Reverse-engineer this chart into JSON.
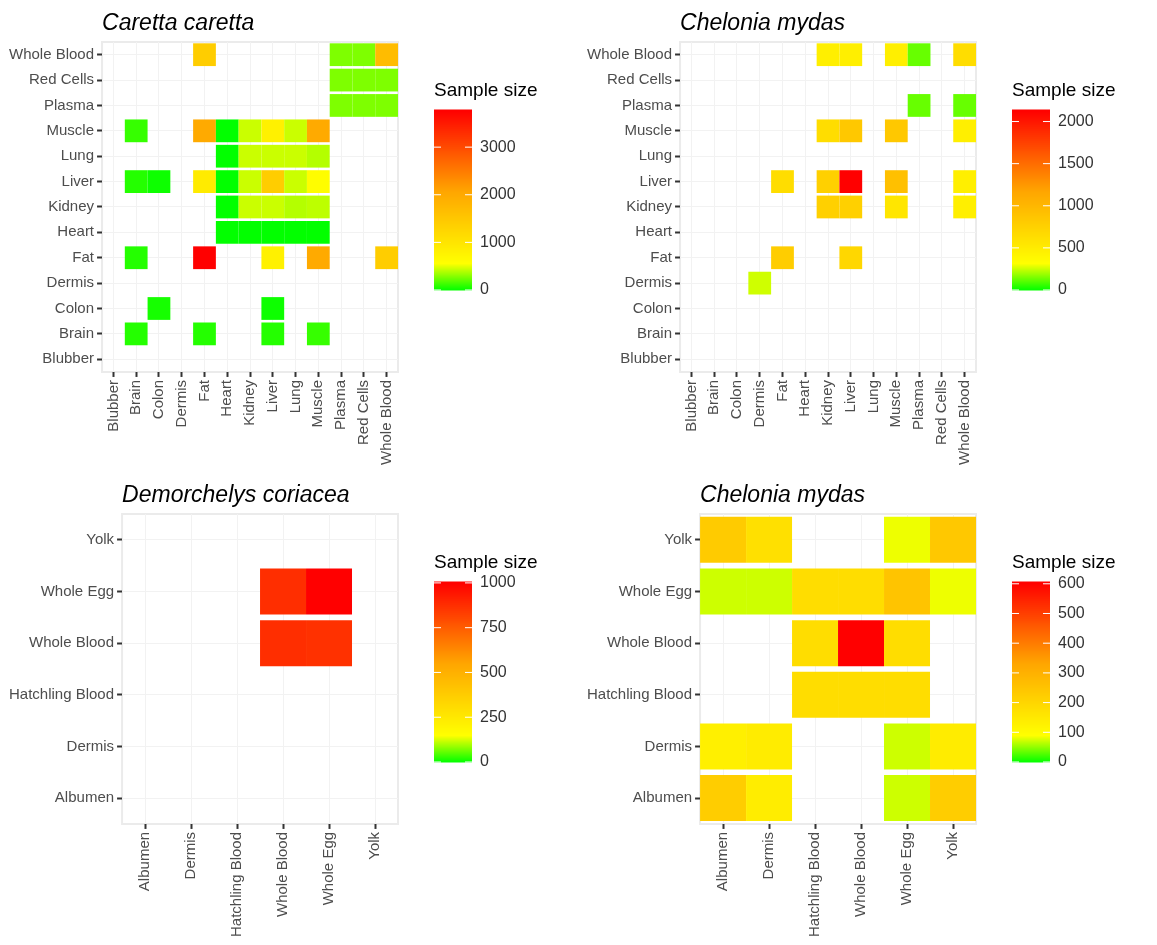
{
  "chart_data": [
    {
      "type": "heatmap",
      "title": "Caretta caretta",
      "clabel": "Sample size",
      "grid": true,
      "legend": false,
      "categories": [
        "Blubber",
        "Brain",
        "Colon",
        "Dermis",
        "Fat",
        "Heart",
        "Kidney",
        "Liver",
        "Lung",
        "Muscle",
        "Plasma",
        "Red Cells",
        "Whole Blood"
      ],
      "y_categories": [
        "Whole Blood",
        "Red Cells",
        "Plasma",
        "Muscle",
        "Lung",
        "Liver",
        "Kidney",
        "Heart",
        "Fat",
        "Dermis",
        "Colon",
        "Brain",
        "Blubber"
      ],
      "cells": [
        [
          null,
          null,
          null,
          null,
          1400,
          null,
          null,
          null,
          null,
          null,
          280,
          280,
          1700
        ],
        [
          null,
          null,
          null,
          null,
          null,
          null,
          null,
          null,
          null,
          null,
          280,
          280,
          280
        ],
        [
          null,
          null,
          null,
          null,
          null,
          null,
          null,
          null,
          null,
          null,
          280,
          280,
          280
        ],
        [
          null,
          120,
          null,
          null,
          2000,
          5,
          450,
          800,
          450,
          2000,
          null,
          null,
          null
        ],
        [
          null,
          null,
          null,
          null,
          null,
          5,
          450,
          450,
          450,
          400,
          null,
          null,
          null
        ],
        [
          null,
          80,
          30,
          null,
          900,
          5,
          450,
          1400,
          450,
          600,
          null,
          null,
          null
        ],
        [
          null,
          null,
          null,
          null,
          null,
          5,
          450,
          450,
          400,
          420,
          null,
          null,
          null
        ],
        [
          null,
          null,
          null,
          null,
          null,
          5,
          5,
          5,
          5,
          5,
          null,
          null,
          null
        ],
        [
          null,
          80,
          null,
          null,
          3780,
          null,
          null,
          800,
          null,
          2000,
          null,
          null,
          1400
        ],
        [
          null,
          null,
          null,
          null,
          null,
          null,
          null,
          null,
          null,
          null,
          null,
          null,
          null
        ],
        [
          null,
          null,
          50,
          null,
          null,
          null,
          null,
          30,
          null,
          null,
          null,
          null,
          null
        ],
        [
          null,
          80,
          null,
          null,
          80,
          null,
          null,
          80,
          null,
          120,
          null,
          null,
          null
        ],
        [
          null,
          null,
          null,
          null,
          null,
          null,
          null,
          null,
          null,
          null,
          null,
          null,
          null
        ]
      ],
      "clim": [
        0,
        3780
      ],
      "cticks": [
        0,
        1000,
        2000,
        3000
      ]
    },
    {
      "type": "heatmap",
      "title": "Chelonia mydas",
      "clabel": "Sample size",
      "grid": true,
      "legend": false,
      "categories": [
        "Blubber",
        "Brain",
        "Colon",
        "Dermis",
        "Fat",
        "Heart",
        "Kidney",
        "Liver",
        "Lung",
        "Muscle",
        "Plasma",
        "Red Cells",
        "Whole Blood"
      ],
      "y_categories": [
        "Whole Blood",
        "Red Cells",
        "Plasma",
        "Muscle",
        "Lung",
        "Liver",
        "Kidney",
        "Heart",
        "Fat",
        "Dermis",
        "Colon",
        "Brain",
        "Blubber"
      ],
      "cells": [
        [
          null,
          null,
          null,
          null,
          null,
          null,
          470,
          470,
          null,
          470,
          130,
          null,
          640
        ],
        [
          null,
          null,
          null,
          null,
          null,
          null,
          null,
          null,
          null,
          null,
          null,
          null,
          null
        ],
        [
          null,
          null,
          null,
          null,
          null,
          null,
          null,
          null,
          null,
          null,
          130,
          null,
          130
        ],
        [
          null,
          null,
          null,
          null,
          null,
          null,
          640,
          840,
          null,
          840,
          null,
          null,
          470
        ],
        [
          null,
          null,
          null,
          null,
          null,
          null,
          null,
          null,
          null,
          null,
          null,
          null,
          null
        ],
        [
          null,
          null,
          null,
          null,
          640,
          null,
          770,
          2137,
          null,
          920,
          null,
          null,
          470
        ],
        [
          null,
          null,
          null,
          null,
          null,
          null,
          770,
          770,
          null,
          560,
          null,
          null,
          470
        ],
        [
          null,
          null,
          null,
          null,
          null,
          null,
          null,
          null,
          null,
          null,
          null,
          null,
          null
        ],
        [
          null,
          null,
          null,
          null,
          800,
          null,
          null,
          700,
          null,
          null,
          null,
          null,
          null
        ],
        [
          null,
          null,
          null,
          260,
          null,
          null,
          null,
          null,
          null,
          null,
          null,
          null,
          null
        ],
        [
          null,
          null,
          null,
          null,
          null,
          null,
          null,
          null,
          null,
          null,
          null,
          null,
          null
        ],
        [
          null,
          null,
          null,
          null,
          null,
          null,
          null,
          null,
          null,
          null,
          null,
          null,
          null
        ],
        [
          null,
          null,
          null,
          null,
          null,
          null,
          null,
          null,
          null,
          null,
          null,
          null,
          null
        ]
      ],
      "clim": [
        0,
        2137
      ],
      "cticks": [
        0,
        500,
        1000,
        1500,
        2000
      ]
    },
    {
      "type": "heatmap",
      "title": "Demorchelys coriacea",
      "clabel": "Sample size",
      "grid": true,
      "legend": false,
      "categories": [
        "Albumen",
        "Dermis",
        "Hatchling Blood",
        "Whole Blood",
        "Whole Egg",
        "Yolk"
      ],
      "y_categories": [
        "Yolk",
        "Whole Egg",
        "Whole Blood",
        "Hatchling Blood",
        "Dermis",
        "Albumen"
      ],
      "cells": [
        [
          null,
          null,
          null,
          null,
          null,
          null
        ],
        [
          null,
          null,
          null,
          880,
          1005,
          null
        ],
        [
          null,
          null,
          null,
          880,
          870,
          null
        ],
        [
          null,
          null,
          null,
          null,
          null,
          null
        ],
        [
          null,
          null,
          null,
          null,
          null,
          null
        ],
        [
          null,
          null,
          null,
          null,
          null,
          null
        ]
      ],
      "clim": [
        0,
        1005
      ],
      "cticks": [
        0,
        250,
        500,
        750,
        1000
      ]
    },
    {
      "type": "heatmap",
      "title": "Chelonia mydas",
      "clabel": "Sample size",
      "grid": true,
      "legend": false,
      "categories": [
        "Albumen",
        "Dermis",
        "Hatchling Blood",
        "Whole Blood",
        "Whole Egg",
        "Yolk"
      ],
      "y_categories": [
        "Yolk",
        "Whole Egg",
        "Whole Blood",
        "Hatchling Blood",
        "Dermis",
        "Albumen"
      ],
      "cells": [
        [
          230,
          175,
          null,
          null,
          85,
          240
        ],
        [
          73,
          73,
          182,
          182,
          250,
          85
        ],
        [
          null,
          null,
          182,
          606,
          182,
          null
        ],
        [
          null,
          null,
          182,
          182,
          182,
          null
        ],
        [
          132,
          143,
          null,
          null,
          73,
          143
        ],
        [
          225,
          140,
          null,
          null,
          73,
          225
        ]
      ],
      "clim": [
        0,
        606
      ],
      "cticks": [
        0,
        100,
        200,
        300,
        400,
        500,
        600
      ]
    }
  ]
}
